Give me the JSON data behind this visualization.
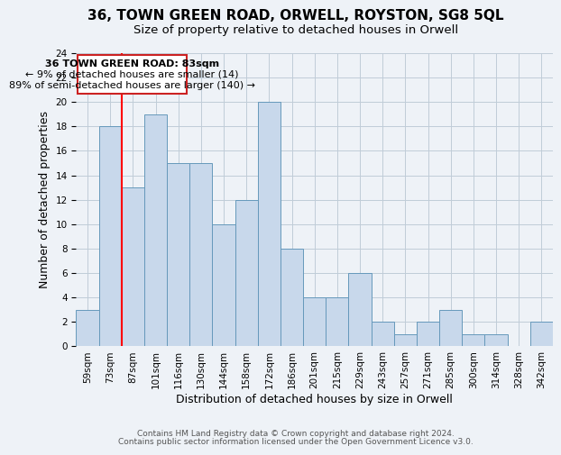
{
  "title1": "36, TOWN GREEN ROAD, ORWELL, ROYSTON, SG8 5QL",
  "title2": "Size of property relative to detached houses in Orwell",
  "xlabel": "Distribution of detached houses by size in Orwell",
  "ylabel": "Number of detached properties",
  "bins": [
    "59sqm",
    "73sqm",
    "87sqm",
    "101sqm",
    "116sqm",
    "130sqm",
    "144sqm",
    "158sqm",
    "172sqm",
    "186sqm",
    "201sqm",
    "215sqm",
    "229sqm",
    "243sqm",
    "257sqm",
    "271sqm",
    "285sqm",
    "300sqm",
    "314sqm",
    "328sqm",
    "342sqm"
  ],
  "values": [
    3,
    18,
    13,
    19,
    15,
    15,
    10,
    12,
    20,
    8,
    4,
    4,
    6,
    2,
    1,
    2,
    3,
    1,
    1,
    0,
    2
  ],
  "bar_color": "#c8d8eb",
  "bar_edge_color": "#6699bb",
  "red_line_bin": 2,
  "annotation_title": "36 TOWN GREEN ROAD: 83sqm",
  "annotation_line1": "← 9% of detached houses are smaller (14)",
  "annotation_line2": "89% of semi-detached houses are larger (140) →",
  "ylim": [
    0,
    24
  ],
  "yticks": [
    0,
    2,
    4,
    6,
    8,
    10,
    12,
    14,
    16,
    18,
    20,
    22,
    24
  ],
  "footer1": "Contains HM Land Registry data © Crown copyright and database right 2024.",
  "footer2": "Contains public sector information licensed under the Open Government Licence v3.0.",
  "bg_color": "#eef2f7",
  "grid_color": "#c0ccd8",
  "annotation_box_color": "#ffffff",
  "annotation_box_edge": "#cc2222",
  "title_fontsize": 11,
  "subtitle_fontsize": 9.5,
  "axis_label_fontsize": 9,
  "tick_fontsize": 7.5,
  "annotation_fontsize": 8,
  "footer_fontsize": 6.5
}
